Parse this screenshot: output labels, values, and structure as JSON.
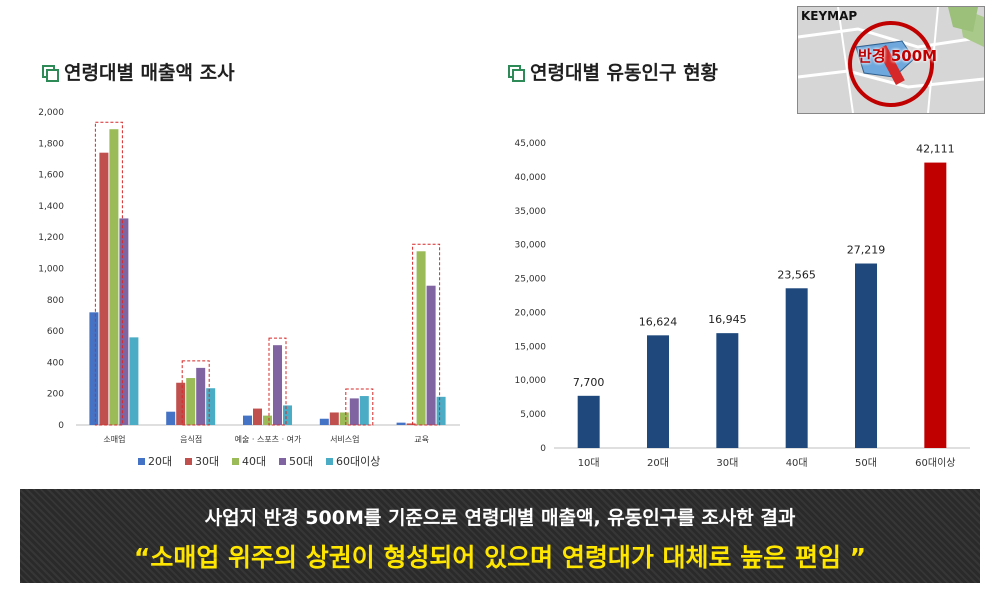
{
  "left_title": "연령대별 매출액 조사",
  "right_title": "연령대별 유동인구 현황",
  "keymap": {
    "label": "KEYMAP",
    "badge": "반경 500M"
  },
  "banner": {
    "line1": "사업지 반경 500M를 기준으로 연령대별 매출액, 유동인구를 조사한 결과",
    "line2": "“소매업 위주의 상권이 형성되어 있으며 연령대가 대체로 높은 편임 ”"
  },
  "colors": {
    "c20": "#4472c4",
    "c30": "#c0504d",
    "c40": "#9bbb59",
    "c50": "#8064a2",
    "c60": "#4bacc6",
    "navy": "#1f497d",
    "red": "#c00000"
  },
  "chart_data": [
    {
      "type": "bar",
      "categories": [
        "소매업",
        "음식점",
        "예술 · 스포츠 · 여가",
        "서비스업",
        "교육"
      ],
      "series": [
        {
          "name": "20대",
          "values": [
            720,
            85,
            60,
            40,
            15
          ]
        },
        {
          "name": "30대",
          "values": [
            1740,
            270,
            105,
            80,
            10
          ]
        },
        {
          "name": "40대",
          "values": [
            1890,
            300,
            60,
            80,
            1110
          ]
        },
        {
          "name": "50대",
          "values": [
            1320,
            365,
            510,
            170,
            890
          ]
        },
        {
          "name": "60대이상",
          "values": [
            560,
            235,
            125,
            185,
            180
          ]
        }
      ],
      "yticks": [
        "0",
        "200",
        "400",
        "600",
        "800",
        "1,000",
        "1,200",
        "1,400",
        "1,600",
        "1,800",
        "2,000"
      ],
      "ylim": [
        0,
        2000
      ],
      "legend": "bottom",
      "highlight_boxes": [
        {
          "category": 0,
          "series_from": 1,
          "series_to": 2
        },
        {
          "category": 1,
          "series_from": 2,
          "series_to": 3
        },
        {
          "category": 2,
          "series_from": 3,
          "series_to": 3
        },
        {
          "category": 3,
          "series_from": 3,
          "series_to": 4
        },
        {
          "category": 4,
          "series_from": 2,
          "series_to": 3
        }
      ]
    },
    {
      "type": "bar",
      "categories": [
        "10대",
        "20대",
        "30대",
        "40대",
        "50대",
        "60대이상"
      ],
      "values": [
        7700,
        16624,
        16945,
        23565,
        27219,
        42111
      ],
      "data_labels": [
        "7,700",
        "16,624",
        "16,945",
        "23,565",
        "27,219",
        "42,111"
      ],
      "yticks": [
        "0",
        "5,000",
        "10,000",
        "15,000",
        "20,000",
        "25,000",
        "30,000",
        "35,000",
        "40,000",
        "45,000"
      ],
      "ylim": [
        0,
        45000
      ],
      "highlight_index": 5
    }
  ]
}
